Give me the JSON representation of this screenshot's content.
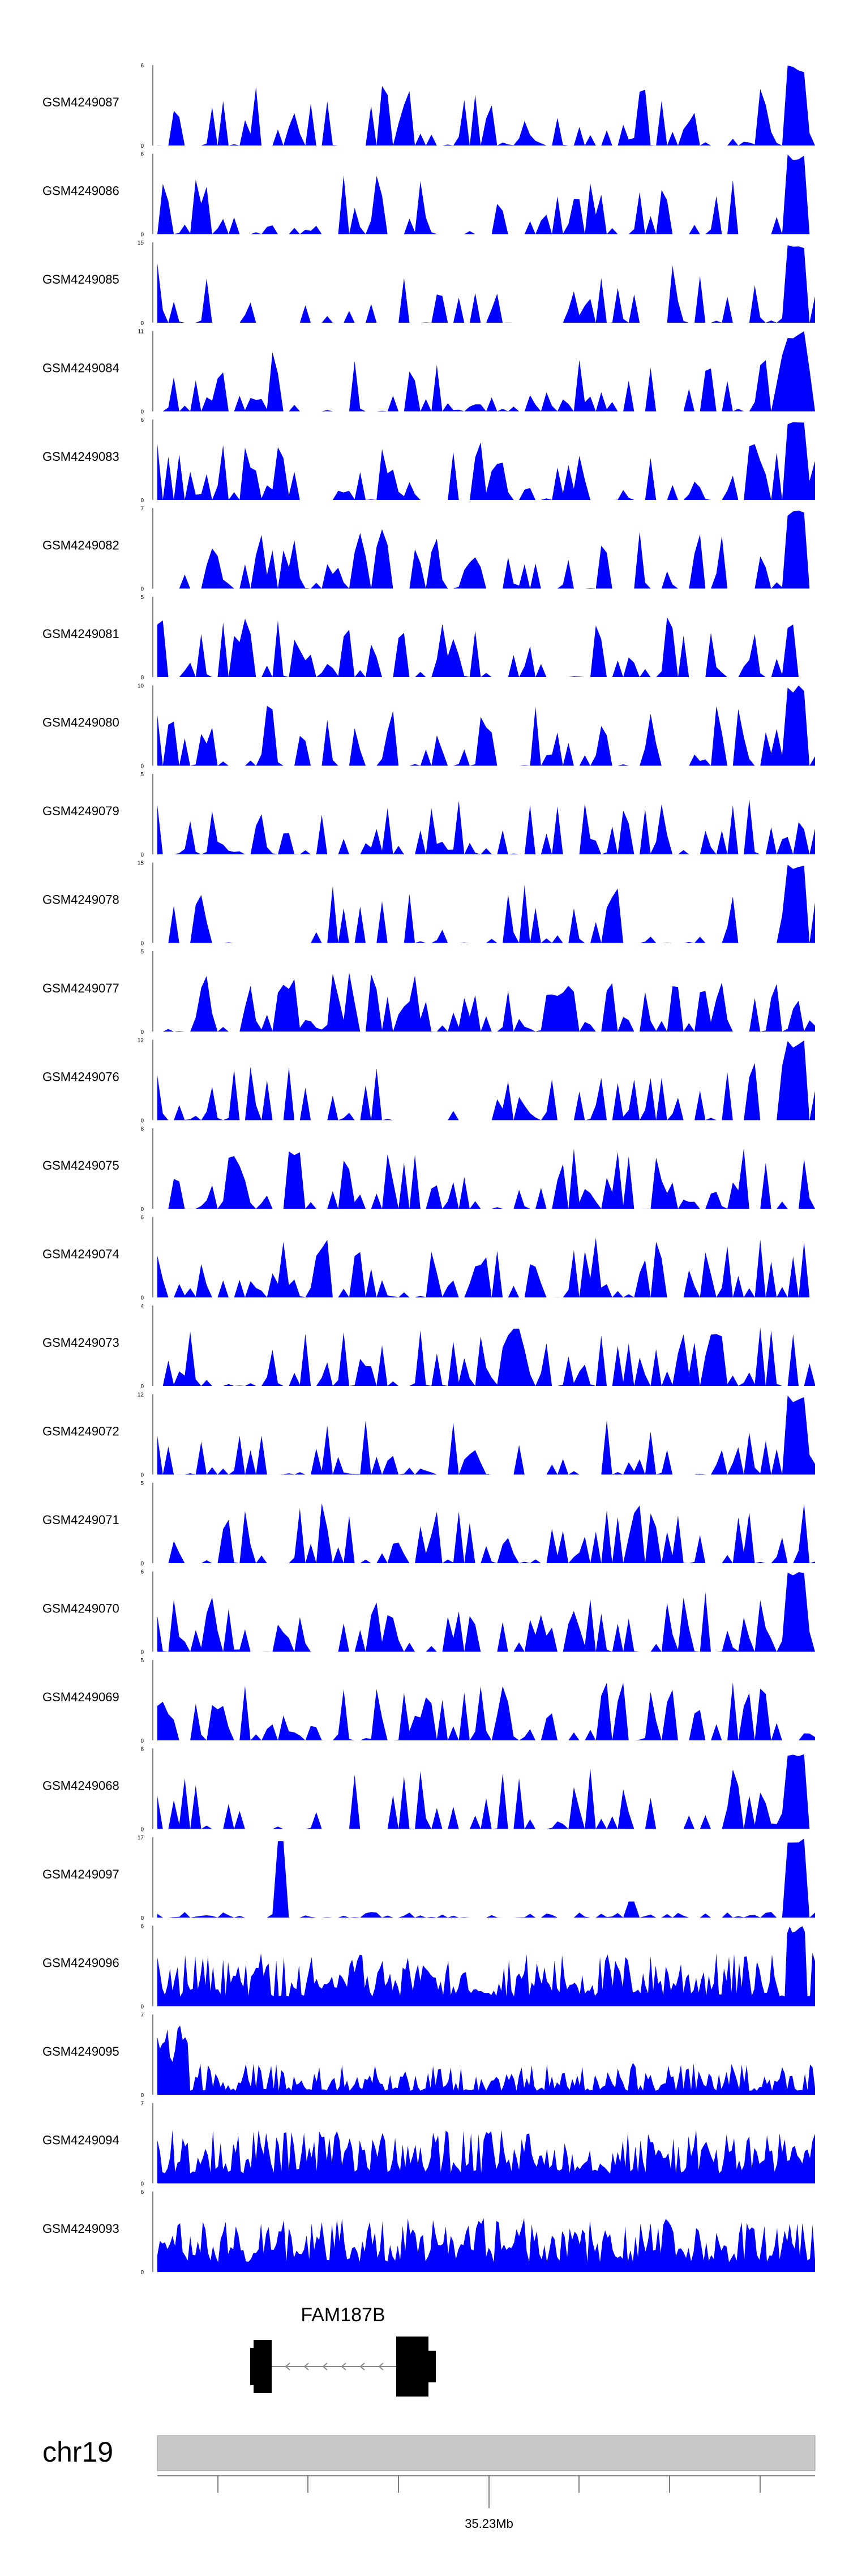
{
  "chart_data": {
    "type": "area",
    "color": "#0000ff",
    "tracks": [
      {
        "name": "GSM4249087",
        "ymax": "6",
        "seed": 1,
        "style": "spiky",
        "density": 0.55,
        "bigEnd": true
      },
      {
        "name": "GSM4249086",
        "ymax": "6",
        "seed": 2,
        "style": "spiky",
        "density": 0.45,
        "bigEnd": true
      },
      {
        "name": "GSM4249085",
        "ymax": "15",
        "seed": 3,
        "style": "spiky",
        "density": 0.35,
        "bigEnd": true
      },
      {
        "name": "GSM4249084",
        "ymax": "11",
        "seed": 4,
        "style": "spiky",
        "density": 0.5,
        "bigEnd": true
      },
      {
        "name": "GSM4249083",
        "ymax": "6",
        "seed": 5,
        "style": "spiky",
        "density": 0.6,
        "bigEnd": true
      },
      {
        "name": "GSM4249082",
        "ymax": "7",
        "seed": 6,
        "style": "spiky",
        "density": 0.55,
        "bigEnd": true
      },
      {
        "name": "GSM4249081",
        "ymax": "5",
        "seed": 7,
        "style": "spiky",
        "density": 0.6,
        "bigEnd": false
      },
      {
        "name": "GSM4249080",
        "ymax": "10",
        "seed": 8,
        "style": "spiky",
        "density": 0.6,
        "bigEnd": true
      },
      {
        "name": "GSM4249079",
        "ymax": "5",
        "seed": 9,
        "style": "spiky",
        "density": 0.6,
        "bigEnd": false
      },
      {
        "name": "GSM4249078",
        "ymax": "15",
        "seed": 10,
        "style": "spiky",
        "density": 0.35,
        "bigEnd": true
      },
      {
        "name": "GSM4249077",
        "ymax": "5",
        "seed": 11,
        "style": "spiky",
        "density": 0.65,
        "bigEnd": false
      },
      {
        "name": "GSM4249076",
        "ymax": "12",
        "seed": 12,
        "style": "spiky",
        "density": 0.45,
        "bigEnd": true
      },
      {
        "name": "GSM4249075",
        "ymax": "8",
        "seed": 13,
        "style": "spiky",
        "density": 0.6,
        "bigEnd": false
      },
      {
        "name": "GSM4249074",
        "ymax": "6",
        "seed": 14,
        "style": "spiky",
        "density": 0.55,
        "bigEnd": false
      },
      {
        "name": "GSM4249073",
        "ymax": "4",
        "seed": 15,
        "style": "spiky",
        "density": 0.7,
        "bigEnd": false
      },
      {
        "name": "GSM4249072",
        "ymax": "12",
        "seed": 16,
        "style": "spiky",
        "density": 0.5,
        "bigEnd": true
      },
      {
        "name": "GSM4249071",
        "ymax": "5",
        "seed": 17,
        "style": "spiky",
        "density": 0.6,
        "bigEnd": false
      },
      {
        "name": "GSM4249070",
        "ymax": "6",
        "seed": 18,
        "style": "spiky",
        "density": 0.6,
        "bigEnd": true
      },
      {
        "name": "GSM4249069",
        "ymax": "5",
        "seed": 19,
        "style": "spiky",
        "density": 0.65,
        "bigEnd": false
      },
      {
        "name": "GSM4249068",
        "ymax": "8",
        "seed": 20,
        "style": "spiky",
        "density": 0.5,
        "bigEnd": true
      },
      {
        "name": "GSM4249097",
        "ymax": "17",
        "seed": 21,
        "style": "sparse-peaks",
        "density": 0.3,
        "bigEnd": true
      },
      {
        "name": "GSM4249096",
        "ymax": "6",
        "seed": 22,
        "style": "dense",
        "density": 0.9,
        "bigEnd": true
      },
      {
        "name": "GSM4249095",
        "ymax": "7",
        "seed": 23,
        "style": "dense-low",
        "density": 0.9,
        "bigEnd": false
      },
      {
        "name": "GSM4249094",
        "ymax": "7",
        "seed": 24,
        "style": "dense",
        "density": 0.9,
        "bigEnd": false
      },
      {
        "name": "GSM4249093",
        "ymax": "6",
        "seed": 25,
        "style": "dense",
        "density": 0.9,
        "bigEnd": false
      }
    ],
    "ymin_label": "0",
    "gene": {
      "name": "FAM187B",
      "strand": "-"
    },
    "chromosome": "chr19",
    "position_label": "35.23Mb"
  }
}
